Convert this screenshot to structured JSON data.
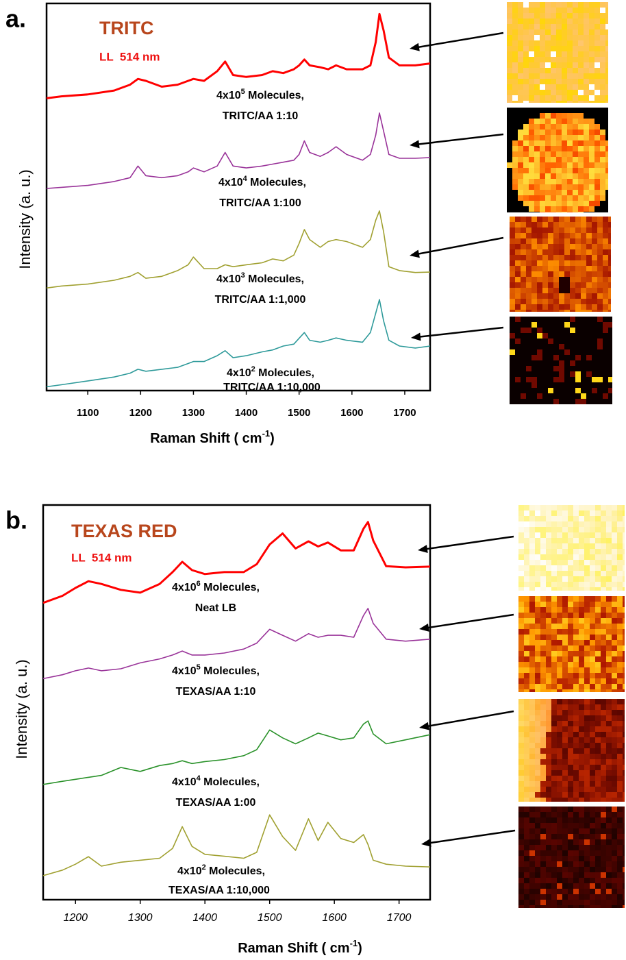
{
  "chart_data": [
    {
      "type": "line",
      "panel_label": "a.",
      "title": "TRITC",
      "subtitle": "LL  514 nm",
      "x_label": [
        "Raman Shift ( cm",
        "-1",
        ")"
      ],
      "y_label": "Intensity  (a. u.)",
      "xlim": [
        1022,
        1748
      ],
      "xticks": [
        1100,
        1200,
        1300,
        1400,
        1500,
        1600,
        1700
      ],
      "ylim": [
        0,
        100
      ],
      "x": [
        1022,
        1050,
        1100,
        1150,
        1180,
        1195,
        1210,
        1240,
        1270,
        1290,
        1300,
        1320,
        1345,
        1360,
        1375,
        1400,
        1430,
        1450,
        1470,
        1490,
        1500,
        1510,
        1520,
        1540,
        1555,
        1570,
        1590,
        1620,
        1635,
        1645,
        1652,
        1660,
        1670,
        1690,
        1720,
        1748
      ],
      "series": [
        {
          "color": "#ff0000",
          "label": [
            [
              "4x10",
              "5",
              " Molecules,"
            ],
            [
              "TRITC/AA  1:10"
            ]
          ],
          "values": [
            75.5,
            76,
            76.5,
            77.5,
            79,
            80.5,
            80,
            78.5,
            79,
            80,
            80.5,
            80,
            82.5,
            85,
            81.5,
            81,
            81.5,
            82.5,
            82,
            83,
            84,
            85.5,
            84,
            83.5,
            83,
            84,
            83,
            83,
            84,
            90,
            97.3,
            93,
            86,
            84,
            84,
            84.5
          ]
        },
        {
          "color": "#993399",
          "label": [
            [
              "4x10",
              "4",
              " Molecules,"
            ],
            [
              "TRITC/AA  1:100"
            ]
          ],
          "values": [
            52.2,
            52.5,
            53,
            54,
            55,
            58,
            55.5,
            55,
            55.5,
            56.5,
            57.5,
            56.5,
            58,
            61.5,
            58,
            57.5,
            58,
            58.5,
            59,
            59.5,
            61,
            64.5,
            61.5,
            60.5,
            61.5,
            63,
            61,
            59.5,
            61,
            66,
            71.7,
            67,
            61,
            60,
            60,
            60.2
          ]
        },
        {
          "color": "#a0a030",
          "label": [
            [
              "4x10",
              "3",
              " Molecules,"
            ],
            [
              "TRITC/AA  1:1,000"
            ]
          ],
          "values": [
            26.5,
            27,
            27.5,
            28.5,
            29.5,
            30.5,
            29,
            29.5,
            31,
            32.5,
            34.5,
            31.5,
            31.5,
            32.5,
            32,
            32.5,
            33,
            34,
            33.5,
            35,
            38,
            41.6,
            39,
            37,
            38.5,
            39,
            38.5,
            37,
            39,
            44,
            46.4,
            41,
            32,
            31,
            30.5,
            30.6
          ]
        },
        {
          "color": "#2e9a9a",
          "label": [
            [
              "4x10",
              "2",
              " Molecules,"
            ],
            [
              "TRITC/AA  1:10,000"
            ]
          ],
          "values": [
            1,
            1.5,
            2.5,
            3.5,
            4.5,
            5.5,
            5,
            5.5,
            6,
            7,
            7.5,
            7.5,
            9,
            10.3,
            8.5,
            9,
            10,
            10.5,
            11.5,
            12,
            13.5,
            15,
            13,
            12.5,
            13,
            13.6,
            13,
            12.5,
            15,
            20,
            23.5,
            18,
            13,
            11.5,
            11,
            11.5
          ]
        }
      ]
    },
    {
      "type": "line",
      "panel_label": "b.",
      "title": "TEXAS RED",
      "subtitle": "LL  514 nm",
      "x_label": [
        "Raman Shift ( cm",
        "-1",
        ")"
      ],
      "y_label": "Intensity  (a. u.)",
      "xlim": [
        1150,
        1748
      ],
      "xticks": [
        1200,
        1300,
        1400,
        1500,
        1600,
        1700
      ],
      "ylim": [
        0,
        100
      ],
      "x": [
        1150,
        1180,
        1200,
        1220,
        1240,
        1270,
        1300,
        1330,
        1350,
        1365,
        1380,
        1400,
        1430,
        1460,
        1480,
        1500,
        1520,
        1540,
        1560,
        1575,
        1590,
        1610,
        1630,
        1645,
        1652,
        1660,
        1680,
        1710,
        1748
      ],
      "series": [
        {
          "color": "#ff0000",
          "label": [
            [
              "4x10",
              "6",
              " Molecules,"
            ],
            [
              "Neat LB"
            ]
          ],
          "values": [
            75.2,
            77,
            79,
            80.7,
            80,
            78.5,
            77.8,
            80,
            83,
            85.6,
            83.5,
            82.5,
            83,
            83,
            85,
            90,
            92.8,
            89,
            90.8,
            89.5,
            90.5,
            88.5,
            88.5,
            94,
            95.7,
            91,
            84.5,
            84.2,
            84.4
          ]
        },
        {
          "color": "#993399",
          "label": [
            [
              "4x10",
              "5",
              " Molecules,"
            ],
            [
              "TEXAS/AA 1:10"
            ]
          ],
          "values": [
            56,
            57,
            58,
            58.7,
            58,
            58.5,
            60,
            61,
            62,
            63,
            62,
            62,
            62.5,
            63.5,
            65,
            68.5,
            67,
            65.5,
            67.4,
            66.5,
            67,
            67,
            66.5,
            72,
            73.8,
            70,
            66,
            65.5,
            66
          ]
        },
        {
          "color": "#2a922a",
          "label": [
            [
              "4x10",
              "4",
              " Molecules,"
            ],
            [
              "TEXAS/AA 1:00"
            ]
          ],
          "values": [
            29.2,
            30,
            30.5,
            31,
            31.5,
            33.5,
            32.5,
            34,
            34.5,
            35.2,
            34.5,
            35,
            35.5,
            36.5,
            38,
            43,
            41,
            39.5,
            41,
            42.2,
            41.5,
            40.5,
            41,
            44.5,
            45.3,
            42,
            39.5,
            40.5,
            41.8
          ]
        },
        {
          "color": "#a0a030",
          "label": [
            [
              "4x10",
              "2",
              " Molecules,"
            ],
            [
              "TEXAS/AA 1:10,000"
            ]
          ],
          "values": [
            6.1,
            7.5,
            9,
            10.9,
            8.5,
            9.5,
            10,
            10.5,
            13,
            18.5,
            13.5,
            11.5,
            11,
            10.5,
            12,
            21.5,
            16,
            12.5,
            20.5,
            15,
            19.6,
            15.5,
            14.5,
            16.5,
            14,
            10,
            9,
            8.5,
            8.3
          ]
        }
      ]
    }
  ]
}
